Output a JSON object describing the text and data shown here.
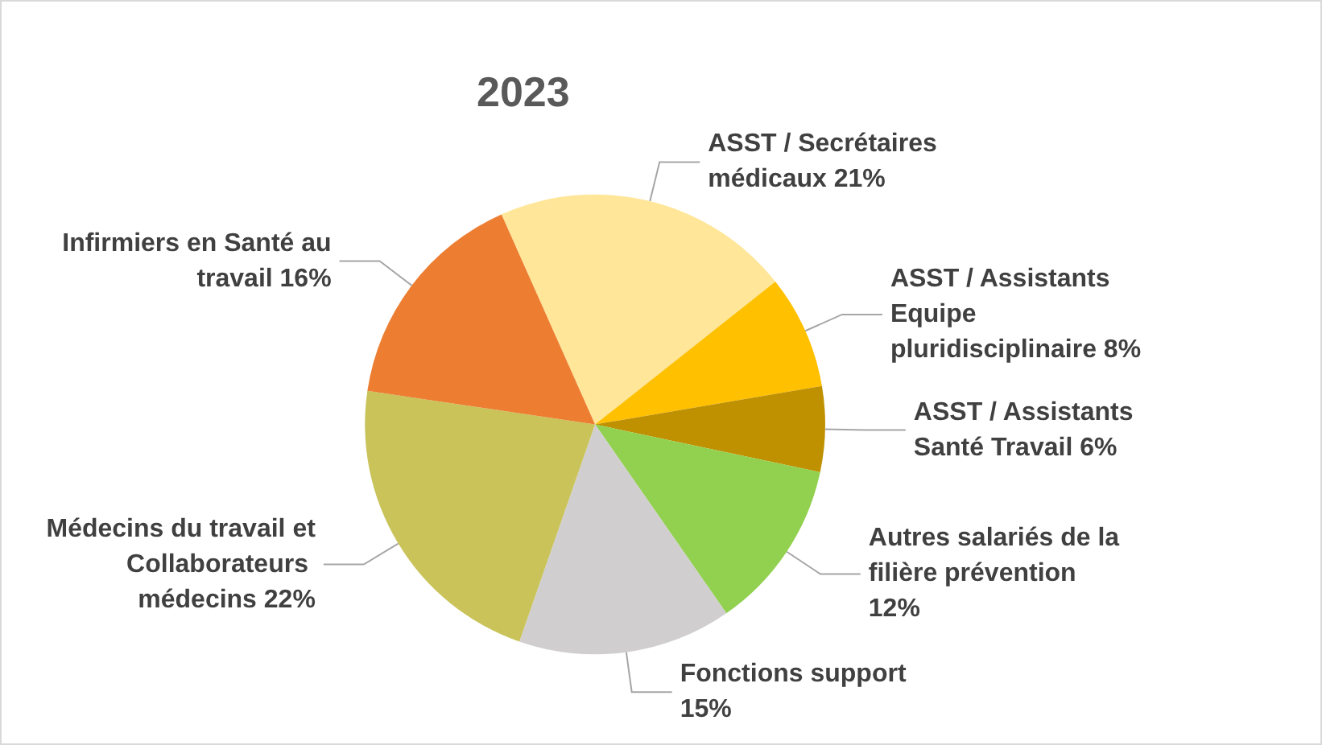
{
  "chart_data": {
    "type": "pie",
    "title": "2023",
    "categories": [
      "ASST / Secrétaires médicaux",
      "ASST / Assistants Equipe pluridisciplinaire",
      "ASST / Assistants Santé Travail",
      "Autres salariés de la filière prévention",
      "Fonctions support",
      "Médecins du travail et Collaborateurs médecins",
      "Infirmiers en Santé au travail"
    ],
    "values": [
      21,
      8,
      6,
      12,
      15,
      22,
      16
    ],
    "colors": [
      "#ffe699",
      "#ffc000",
      "#bf9000",
      "#92d050",
      "#d0cece",
      "#c9c35a",
      "#ed7d31"
    ],
    "value_labels": [
      "21%",
      "8%",
      "6%",
      "12%",
      "15%",
      "22%",
      "16%"
    ],
    "legend": false
  }
}
